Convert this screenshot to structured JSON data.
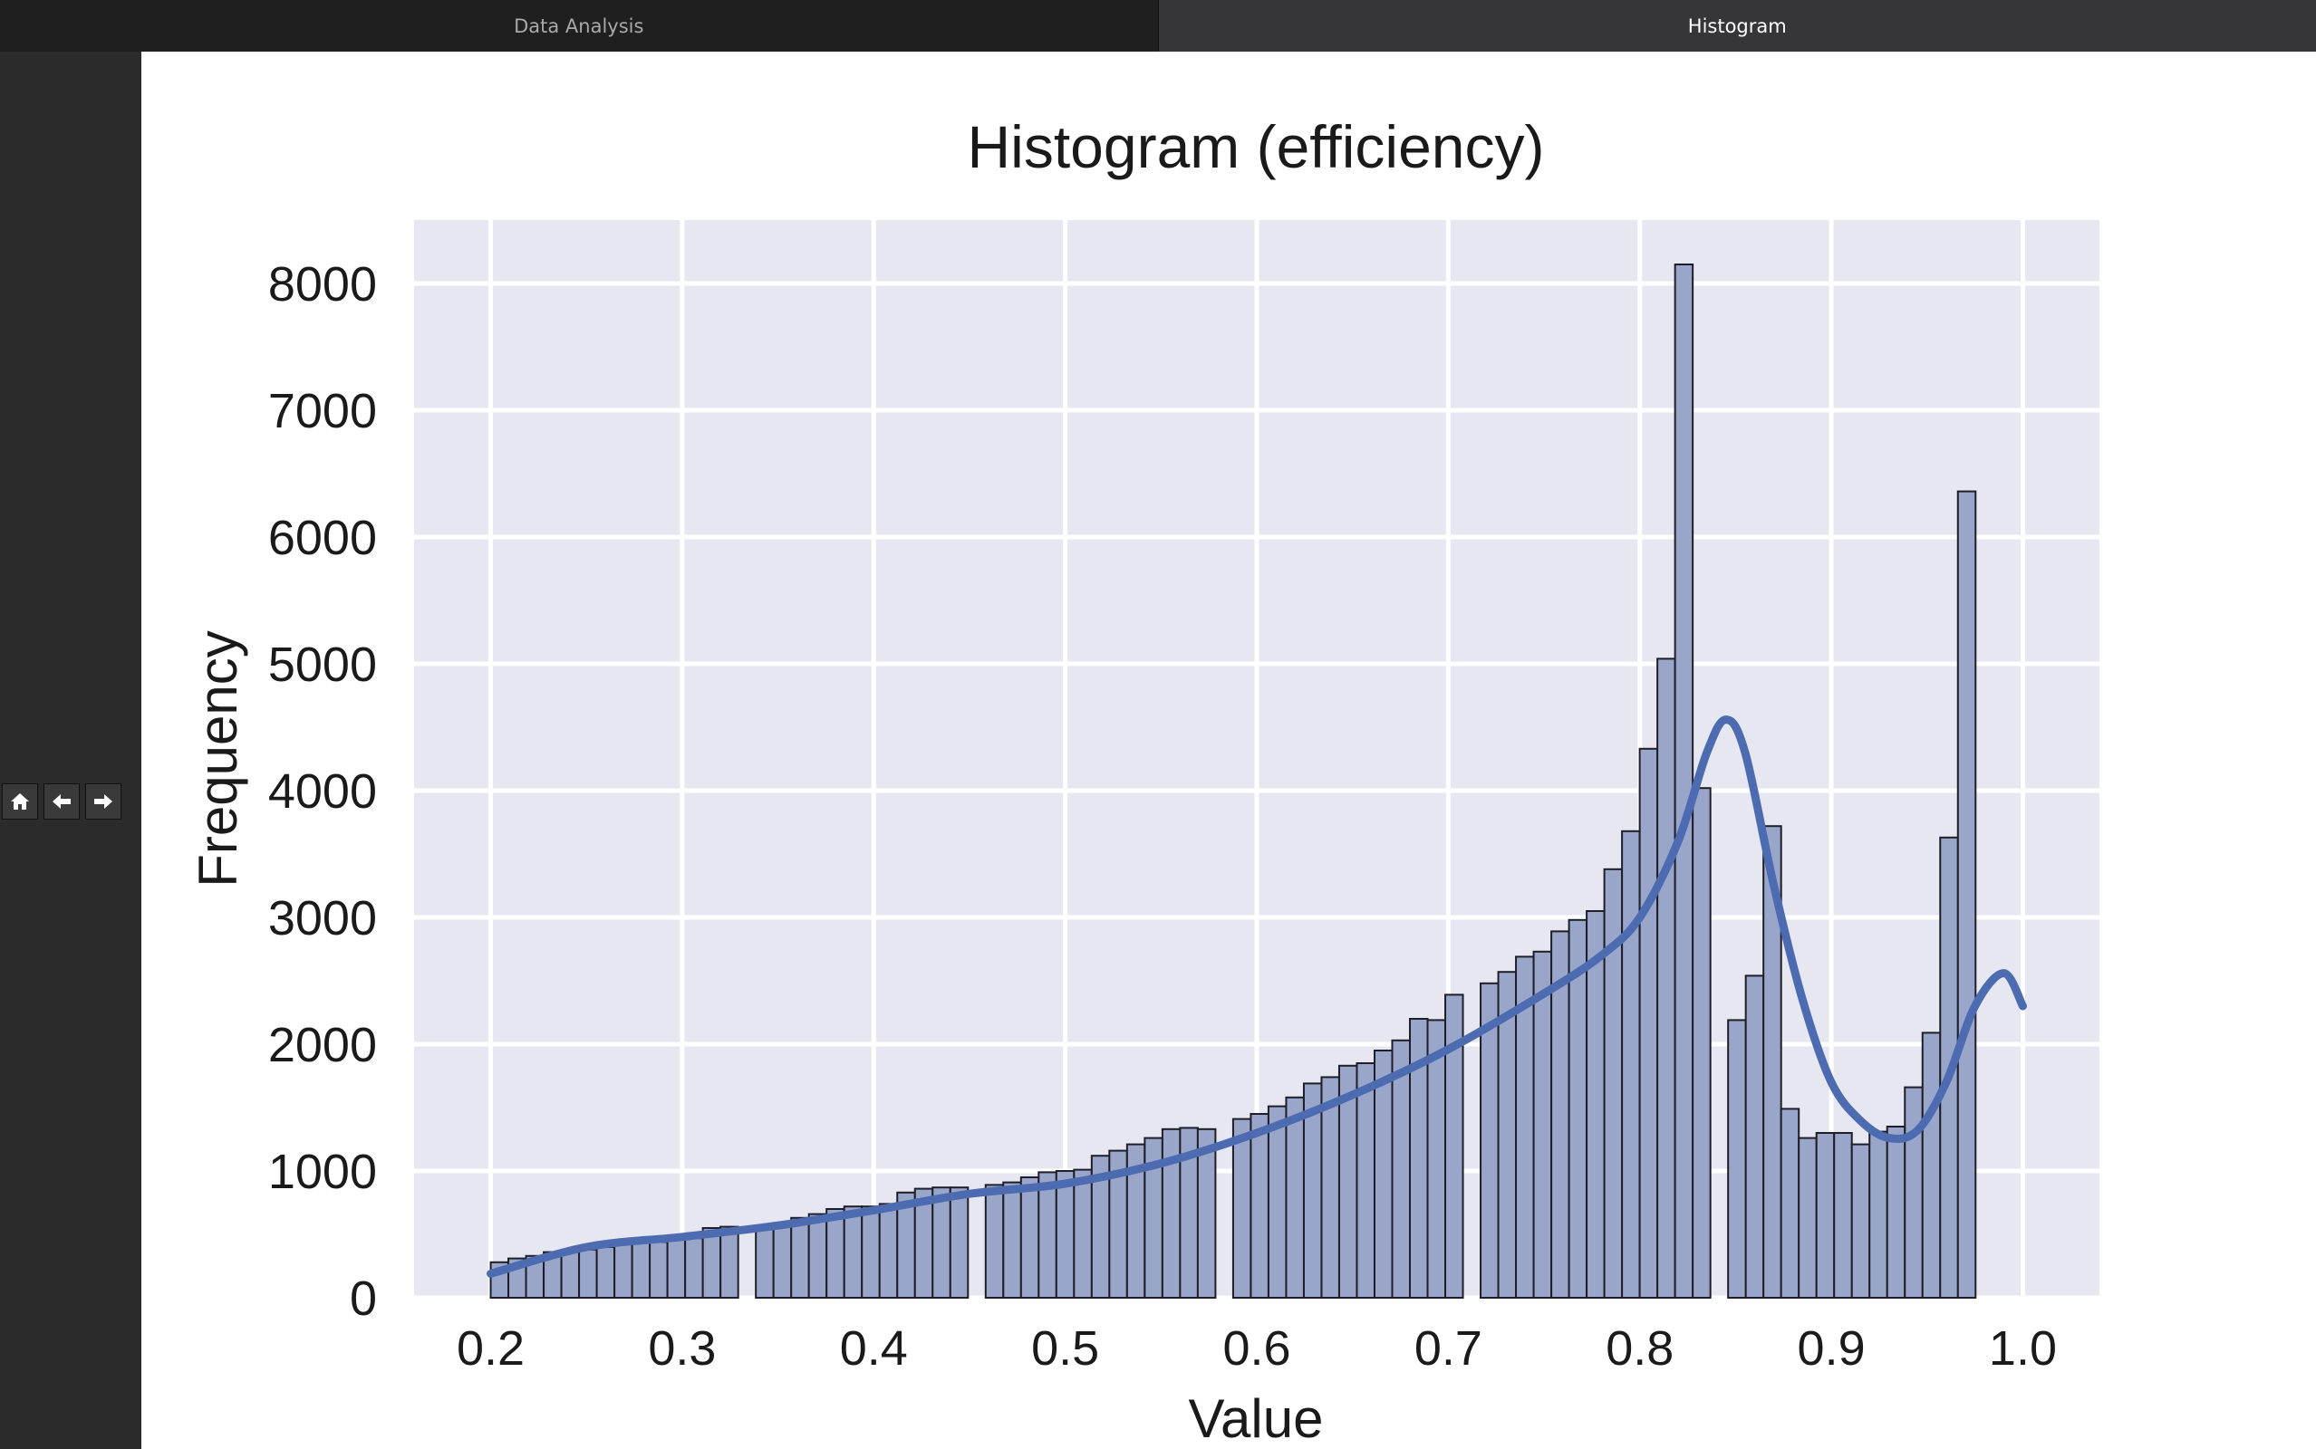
{
  "tabs": [
    {
      "label": "Data Analysis",
      "active": false
    },
    {
      "label": "Histogram",
      "active": true
    }
  ],
  "toolbar": {
    "home_icon": "home-icon",
    "back_icon": "arrow-left-icon",
    "forward_icon": "arrow-right-icon"
  },
  "chart_data": {
    "type": "bar",
    "title": "Histogram (efficiency)",
    "xlabel": "Value",
    "ylabel": "Frequency",
    "xlim": [
      0.16,
      1.04
    ],
    "ylim": [
      0,
      8500
    ],
    "xticks": [
      "0.2",
      "0.3",
      "0.4",
      "0.5",
      "0.6",
      "0.7",
      "0.8",
      "0.9",
      "1.0"
    ],
    "yticks": [
      "0",
      "1000",
      "2000",
      "3000",
      "4000",
      "5000",
      "6000",
      "7000",
      "8000"
    ],
    "grid": true,
    "bin_start": 0.2,
    "bin_width": 0.00923,
    "values": [
      280,
      310,
      330,
      360,
      370,
      380,
      400,
      440,
      440,
      440,
      460,
      470,
      550,
      560,
      0,
      570,
      590,
      630,
      660,
      700,
      720,
      720,
      740,
      830,
      860,
      870,
      870,
      0,
      890,
      910,
      950,
      990,
      1000,
      1010,
      1120,
      1160,
      1210,
      1260,
      1330,
      1340,
      1330,
      0,
      1410,
      1450,
      1510,
      1580,
      1690,
      1740,
      1830,
      1850,
      1950,
      2030,
      2200,
      2190,
      2390,
      0,
      2480,
      2570,
      2690,
      2730,
      2890,
      2980,
      3050,
      3380,
      3680,
      4330,
      5040,
      8150,
      4020,
      0,
      2190,
      2540,
      3720,
      1490,
      1260,
      1300,
      1300,
      1210,
      1310,
      1350,
      1660,
      2090,
      3630,
      6360
    ],
    "kde": {
      "x": [
        0.2,
        0.25,
        0.3,
        0.35,
        0.4,
        0.45,
        0.5,
        0.55,
        0.6,
        0.65,
        0.7,
        0.75,
        0.78,
        0.8,
        0.82,
        0.835,
        0.845,
        0.855,
        0.87,
        0.885,
        0.9,
        0.915,
        0.93,
        0.945,
        0.96,
        0.975,
        0.99,
        1.0
      ],
      "y": [
        190,
        400,
        480,
        570,
        690,
        820,
        900,
        1060,
        1300,
        1600,
        1960,
        2400,
        2700,
        3000,
        3600,
        4300,
        4560,
        4300,
        3250,
        2350,
        1700,
        1400,
        1260,
        1320,
        1700,
        2300,
        2560,
        2300
      ]
    },
    "colors": {
      "bar": "#99a6c9",
      "kde": "#4c6bb0",
      "plot_bg": "#e6e7f0"
    }
  }
}
